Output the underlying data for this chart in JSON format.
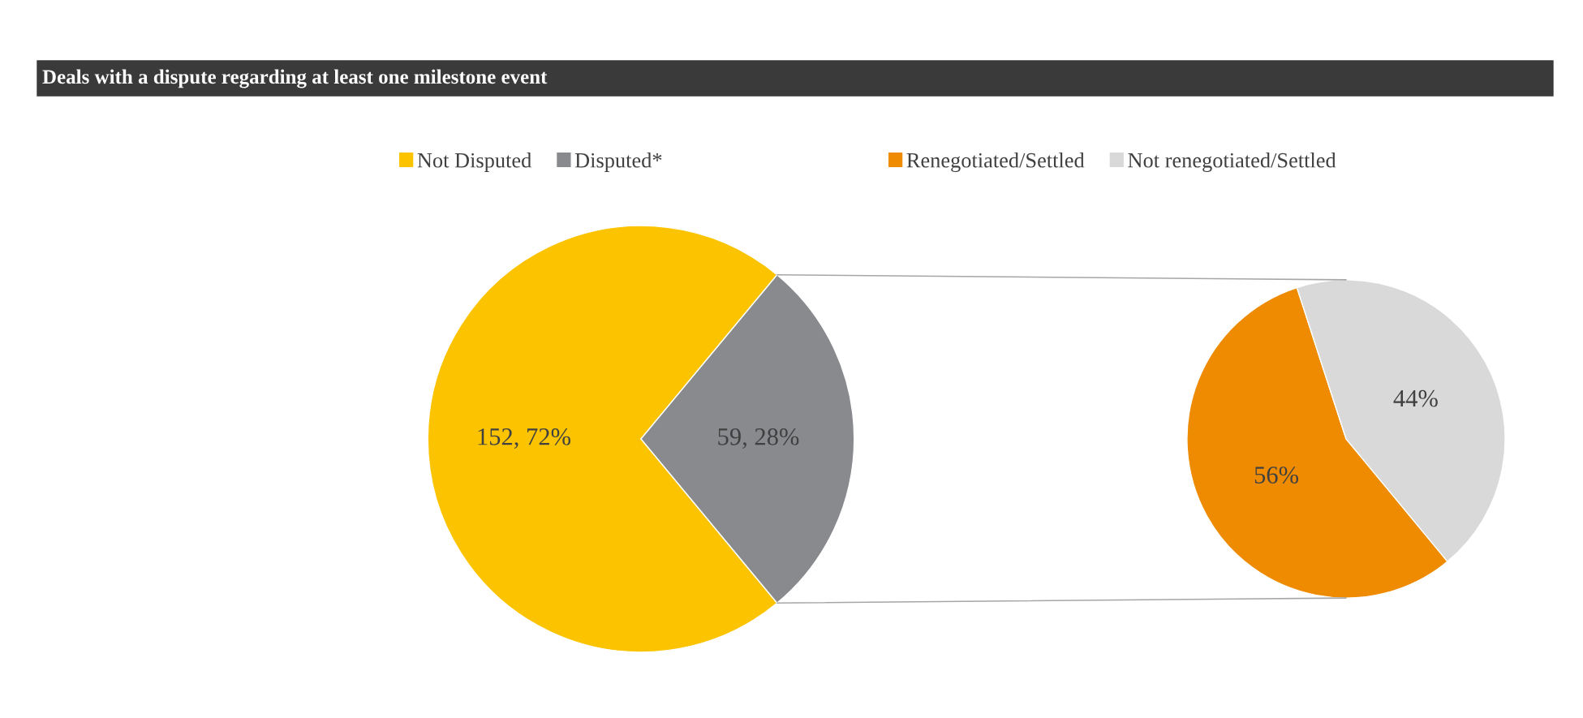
{
  "chart_data": [
    {
      "type": "pie",
      "title": "Deals with a dispute regarding at least one milestone event",
      "categories": [
        "Not Disputed",
        "Disputed*"
      ],
      "values": [
        152,
        59
      ],
      "colors": [
        "#fcc400",
        "#898a8e"
      ],
      "value_labels": [
        "152, 72%",
        "59, 28%"
      ],
      "legend": "top"
    },
    {
      "type": "pie",
      "categories": [
        "Renegotiated/Settled",
        "Not renegotiated/Settled"
      ],
      "values": [
        56,
        44
      ],
      "colors": [
        "#ee8b00",
        "#d9d9d9"
      ],
      "value_labels": [
        "56%",
        "44%"
      ],
      "legend": "top"
    }
  ]
}
